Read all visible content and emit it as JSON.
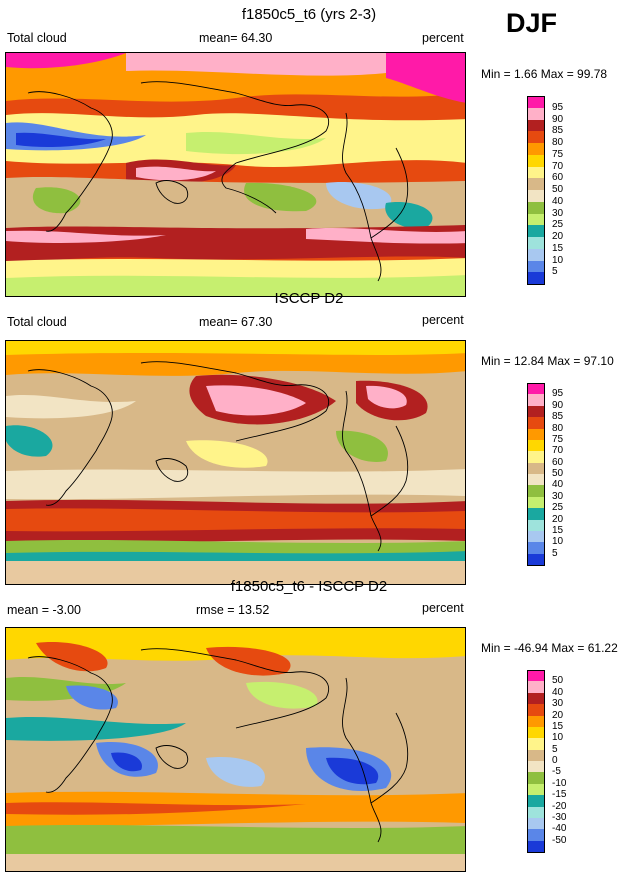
{
  "season": "DJF",
  "panels": [
    {
      "title": "f1850c5_t6 (yrs 2-3)",
      "left": "Total cloud",
      "center": "mean=  64.30",
      "right": "percent",
      "range": "Min =   1.66 Max =  99.78",
      "scale": [
        "95",
        "90",
        "85",
        "80",
        "75",
        "70",
        "60",
        "50",
        "40",
        "30",
        "25",
        "20",
        "15",
        "10",
        "5"
      ],
      "colors": [
        "#ff1aa8",
        "#ffb0c8",
        "#b22020",
        "#e64a10",
        "#ff9900",
        "#ffd700",
        "#fff48a",
        "#d8b888",
        "#f2e4c4",
        "#8fbf3f",
        "#c6ef6f",
        "#1aa8a0",
        "#9ee3dc",
        "#a8c8f0",
        "#5a86e8",
        "#1a3ad8",
        "#0a08a8",
        "#9b6ee0"
      ]
    },
    {
      "title": "ISCCP D2",
      "left": "Total cloud",
      "center": "mean=  67.30",
      "right": "percent",
      "range": "Min =  12.84 Max =  97.10",
      "scale": [
        "95",
        "90",
        "85",
        "80",
        "75",
        "70",
        "60",
        "50",
        "40",
        "30",
        "25",
        "20",
        "15",
        "10",
        "5"
      ]
    },
    {
      "title": "f1850c5_t6 - ISCCP D2",
      "left": "mean =  -3.00",
      "center": "rmse =  13.52",
      "right": "percent",
      "range": "Min = -46.94 Max =  61.22",
      "scale": [
        "50",
        "40",
        "30",
        "20",
        "15",
        "10",
        "5",
        "0",
        "-5",
        "-10",
        "-15",
        "-20",
        "-30",
        "-40",
        "-50"
      ]
    }
  ]
}
